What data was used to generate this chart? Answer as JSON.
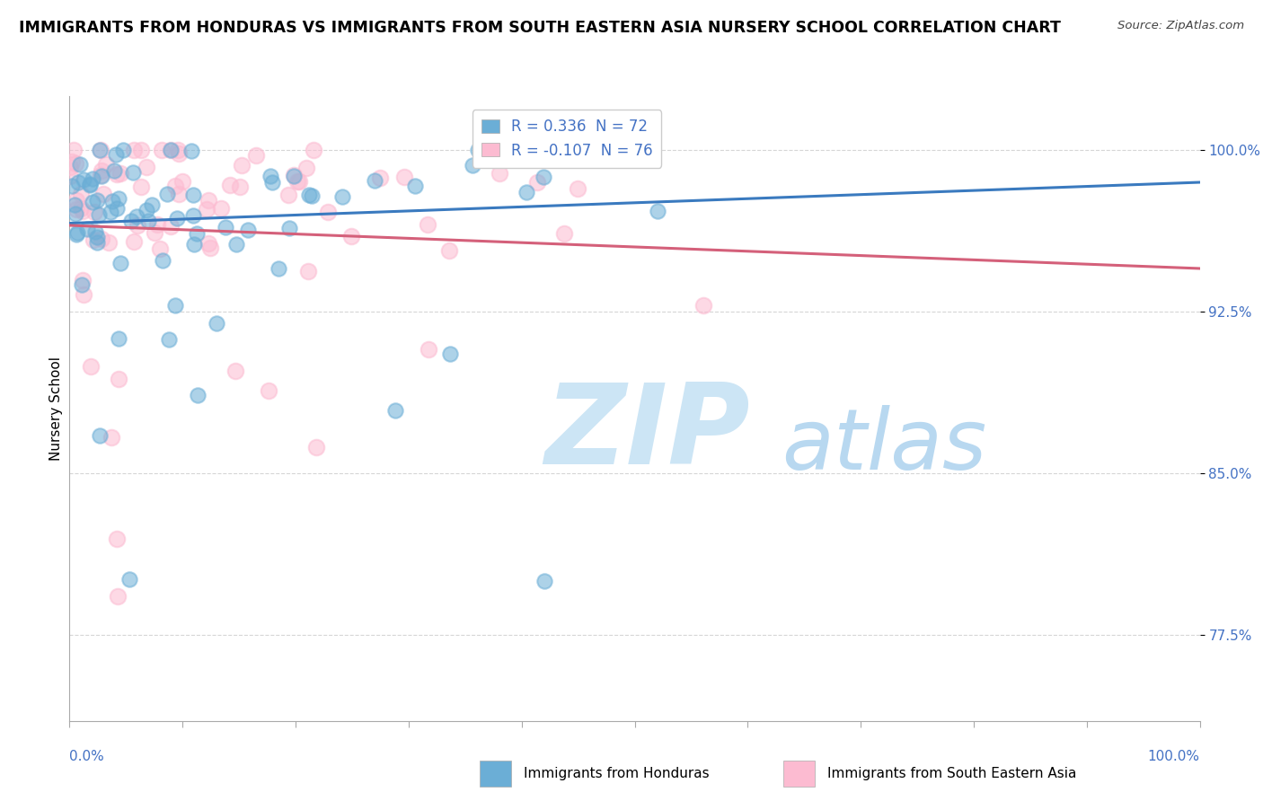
{
  "title": "IMMIGRANTS FROM HONDURAS VS IMMIGRANTS FROM SOUTH EASTERN ASIA NURSERY SCHOOL CORRELATION CHART",
  "source": "Source: ZipAtlas.com",
  "ylabel": "Nursery School",
  "ytick_labels": [
    "77.5%",
    "85.0%",
    "92.5%",
    "100.0%"
  ],
  "ytick_values": [
    0.775,
    0.85,
    0.925,
    1.0
  ],
  "xlim": [
    0.0,
    1.0
  ],
  "ylim": [
    0.735,
    1.025
  ],
  "blue_r": 0.336,
  "blue_n": 72,
  "pink_r": -0.107,
  "pink_n": 76,
  "background_color": "#ffffff",
  "grid_color": "#cccccc",
  "blue_color": "#6baed6",
  "pink_color": "#fcbbd1",
  "blue_line_color": "#3a7abf",
  "pink_line_color": "#d4607a",
  "tick_color": "#4472c4",
  "watermark_zip_color": "#cce5f5",
  "watermark_atlas_color": "#b8d8f0"
}
